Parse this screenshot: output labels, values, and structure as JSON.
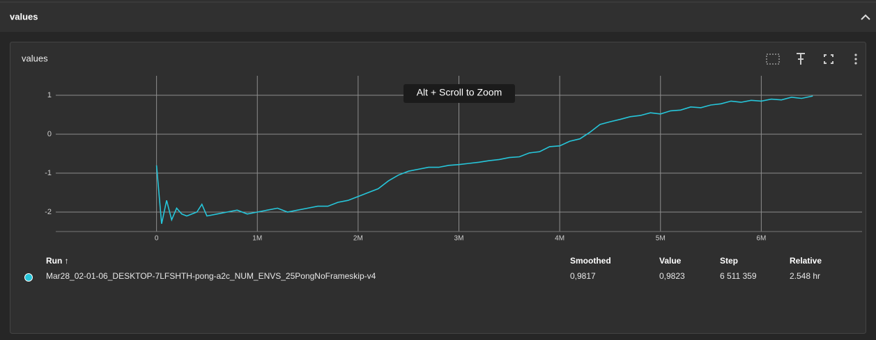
{
  "header": {
    "title": "values"
  },
  "card": {
    "title": "values",
    "tooltip": "Alt + Scroll to Zoom"
  },
  "chart_data": {
    "type": "line",
    "x": [
      0,
      50000,
      100000,
      150000,
      200000,
      250000,
      300000,
      400000,
      450000,
      500000,
      600000,
      700000,
      800000,
      900000,
      1000000,
      1100000,
      1200000,
      1300000,
      1400000,
      1500000,
      1600000,
      1700000,
      1800000,
      1900000,
      2000000,
      2100000,
      2200000,
      2300000,
      2400000,
      2500000,
      2600000,
      2700000,
      2800000,
      2900000,
      3000000,
      3100000,
      3200000,
      3300000,
      3400000,
      3500000,
      3600000,
      3700000,
      3800000,
      3900000,
      4000000,
      4100000,
      4200000,
      4300000,
      4400000,
      4500000,
      4600000,
      4700000,
      4800000,
      4900000,
      5000000,
      5100000,
      5200000,
      5300000,
      5400000,
      5500000,
      5600000,
      5700000,
      5800000,
      5900000,
      6000000,
      6100000,
      6200000,
      6300000,
      6400000,
      6511359
    ],
    "series": [
      {
        "name": "Mar28_02-01-06_DESKTOP-7LFSHTH-pong-a2c_NUM_ENVS_25PongNoFrameskip-v4",
        "color": "#26c6da",
        "values": [
          -0.8,
          -2.3,
          -1.7,
          -2.2,
          -1.9,
          -2.05,
          -2.1,
          -2.0,
          -1.8,
          -2.1,
          -2.05,
          -2.0,
          -1.95,
          -2.05,
          -2.0,
          -1.95,
          -1.9,
          -2.0,
          -1.95,
          -1.9,
          -1.85,
          -1.85,
          -1.75,
          -1.7,
          -1.6,
          -1.5,
          -1.4,
          -1.2,
          -1.05,
          -0.95,
          -0.9,
          -0.85,
          -0.85,
          -0.8,
          -0.78,
          -0.75,
          -0.72,
          -0.68,
          -0.65,
          -0.6,
          -0.58,
          -0.48,
          -0.45,
          -0.32,
          -0.3,
          -0.18,
          -0.12,
          0.05,
          0.25,
          0.32,
          0.38,
          0.45,
          0.48,
          0.55,
          0.52,
          0.6,
          0.62,
          0.7,
          0.68,
          0.75,
          0.78,
          0.85,
          0.82,
          0.87,
          0.85,
          0.9,
          0.88,
          0.95,
          0.92,
          0.98
        ]
      }
    ],
    "xlim": [
      -1000000,
      7000000
    ],
    "xticks": [
      0,
      {
        "value": 1000000,
        "label": "1M"
      },
      {
        "value": 2000000,
        "label": "2M"
      },
      {
        "value": 3000000,
        "label": "3M"
      },
      {
        "value": 4000000,
        "label": "4M"
      },
      {
        "value": 5000000,
        "label": "5M"
      },
      {
        "value": 6000000,
        "label": "6M"
      }
    ],
    "ylim": [
      -2.5,
      1.5
    ],
    "yticks": [
      -2,
      -1,
      0,
      1
    ],
    "grid": true
  },
  "table": {
    "headers": [
      "Run ↑",
      "Smoothed",
      "Value",
      "Step",
      "Relative"
    ],
    "rows": [
      [
        "Mar28_02-01-06_DESKTOP-7LFSHTH-pong-a2c_NUM_ENVS_25PongNoFrameskip-v4",
        "0,9817",
        "0,9823",
        "6 511 359",
        "2.548 hr"
      ]
    ]
  }
}
